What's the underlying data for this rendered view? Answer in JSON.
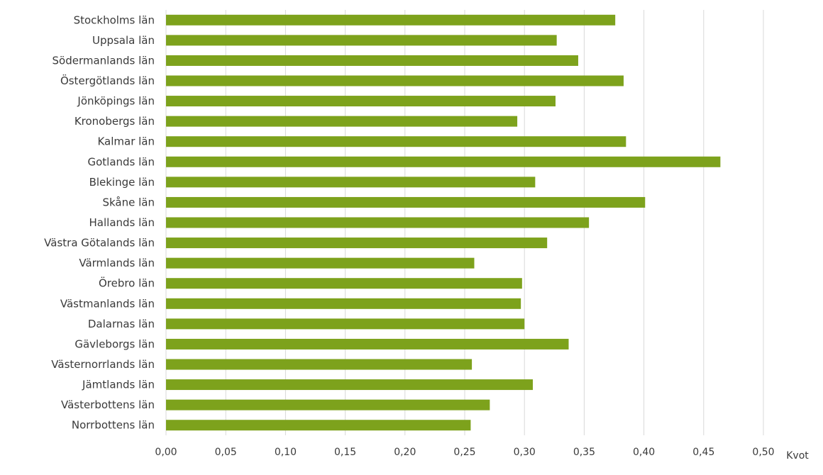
{
  "chart_data": {
    "type": "bar",
    "orientation": "horizontal",
    "categories": [
      "Stockholms län",
      "Uppsala län",
      "Södermanlands län",
      "Östergötlands län",
      "Jönköpings län",
      "Kronobergs län",
      "Kalmar län",
      "Gotlands län",
      "Blekinge län",
      "Skåne län",
      "Hallands län",
      "Västra Götalands län",
      "Värmlands län",
      "Örebro län",
      "Västmanlands län",
      "Dalarnas län",
      "Gävleborgs län",
      "Västernorrlands län",
      "Jämtlands län",
      "Västerbottens län",
      "Norrbottens län"
    ],
    "values": [
      0.376,
      0.327,
      0.345,
      0.383,
      0.326,
      0.294,
      0.385,
      0.464,
      0.309,
      0.401,
      0.354,
      0.319,
      0.258,
      0.298,
      0.297,
      0.3,
      0.337,
      0.256,
      0.307,
      0.271,
      0.255
    ],
    "xlabel": "Kvot",
    "xlim": [
      0,
      0.5
    ],
    "xticks": [
      0,
      0.05,
      0.1,
      0.15,
      0.2,
      0.25,
      0.3,
      0.35,
      0.4,
      0.45,
      0.5
    ],
    "xtick_labels": [
      "0,00",
      "0,05",
      "0,10",
      "0,15",
      "0,20",
      "0,25",
      "0,30",
      "0,35",
      "0,40",
      "0,45",
      "0,50"
    ],
    "grid": "vertical",
    "bar_color": "#7da21c",
    "grid_color": "#d9d9d9"
  }
}
